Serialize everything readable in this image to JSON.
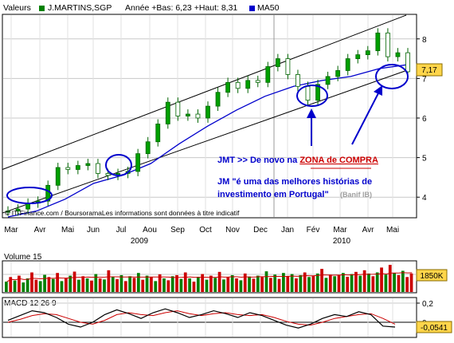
{
  "header": {
    "label": "Valeurs",
    "symbol": "J.MARTINS,SGP",
    "range_text": "Année +Bas: 6,23 +Haut: 8,31",
    "ma_label": "MA50"
  },
  "source_note": "© IT-Finance.com / BoursoramaLes informations sont données à titre indicatif",
  "annotations": {
    "line1_prefix": "JMT >> De novo na ",
    "line1_highlight": "ZONA de COMPRA",
    "line2": "JM \"é uma das melhores histórias de",
    "line3": "investimento em Portugal\"",
    "line3_source": "(Banif IB)"
  },
  "colors": {
    "price": "#008000",
    "ma": "#0000cc",
    "volume_up": "#008000",
    "volume_down": "#cc0000",
    "volume_avg": "#cc0000",
    "annotation_blue": "#0000cc",
    "annotation_red": "#cc0000",
    "last_price_badge": "#ffd54a"
  },
  "chart_data": [
    {
      "type": "candlestick",
      "title": "J.MARTINS,SGP",
      "x_tick_labels": [
        "Mar",
        "Avr",
        "Mai",
        "Jun",
        "Jul",
        "Aou",
        "Sep",
        "Oct",
        "Nov",
        "Dec",
        "Jan",
        "Fév",
        "Mar",
        "Avr",
        "Mai"
      ],
      "year_labels": [
        "2009",
        "2010"
      ],
      "y_ticks": [
        4,
        5,
        6,
        7,
        8
      ],
      "ylim": [
        3.5,
        8.6
      ],
      "last_value": "7,17",
      "grid": true,
      "series": [
        {
          "name": "J.MARTINS,SGP",
          "points": [
            [
              "Mar",
              3.65
            ],
            [
              "Mar",
              3.7
            ],
            [
              "Avr",
              3.85
            ],
            [
              "Avr",
              3.9
            ],
            [
              "Avr",
              4.3
            ],
            [
              "Mai",
              4.75
            ],
            [
              "Mai",
              4.7
            ],
            [
              "Mai",
              4.8
            ],
            [
              "Jun",
              4.85
            ],
            [
              "Jun",
              4.6
            ],
            [
              "Jun",
              4.55
            ],
            [
              "Jul",
              4.6
            ],
            [
              "Jul",
              4.65
            ],
            [
              "Jul",
              5.1
            ],
            [
              "Aou",
              5.4
            ],
            [
              "Aou",
              5.85
            ],
            [
              "Sep",
              6.4
            ],
            [
              "Sep",
              6.05
            ],
            [
              "Sep",
              6.1
            ],
            [
              "Oct",
              6.0
            ],
            [
              "Oct",
              6.3
            ],
            [
              "Oct",
              6.65
            ],
            [
              "Nov",
              6.9
            ],
            [
              "Nov",
              6.75
            ],
            [
              "Nov",
              6.95
            ],
            [
              "Dec",
              6.9
            ],
            [
              "Dec",
              7.3
            ],
            [
              "Jan",
              7.5
            ],
            [
              "Jan",
              7.1
            ],
            [
              "Jan",
              6.8
            ],
            [
              "Fév",
              6.45
            ],
            [
              "Fév",
              6.85
            ],
            [
              "Fév",
              7.05
            ],
            [
              "Mar",
              7.2
            ],
            [
              "Mar",
              7.5
            ],
            [
              "Mar",
              7.6
            ],
            [
              "Avr",
              7.7
            ],
            [
              "Avr",
              8.15
            ],
            [
              "Avr",
              7.55
            ],
            [
              "Mai",
              7.65
            ],
            [
              "Mai",
              7.17
            ]
          ]
        },
        {
          "name": "MA50",
          "points": [
            [
              "Mar",
              3.5
            ],
            [
              "Avr",
              3.65
            ],
            [
              "Mai",
              3.95
            ],
            [
              "Jun",
              4.35
            ],
            [
              "Jul",
              4.55
            ],
            [
              "Aou",
              4.85
            ],
            [
              "Sep",
              5.35
            ],
            [
              "Oct",
              5.8
            ],
            [
              "Nov",
              6.2
            ],
            [
              "Dec",
              6.55
            ],
            [
              "Jan",
              6.8
            ],
            [
              "Fév",
              6.95
            ],
            [
              "Mar",
              7.05
            ],
            [
              "Avr",
              7.25
            ],
            [
              "Mai",
              7.35
            ]
          ]
        }
      ],
      "trend_channel": {
        "upper": [
          [
            "Mar",
            4.7
          ],
          [
            "Mai",
            8.6
          ]
        ],
        "lower": [
          [
            "Mar",
            3.6
          ],
          [
            "Mai",
            7.2
          ]
        ]
      }
    },
    {
      "type": "bar",
      "title": "Volume 15",
      "last_value": "1850K",
      "bars": [
        [
          0.38,
          1
        ],
        [
          0.55,
          0
        ],
        [
          0.42,
          1
        ],
        [
          0.6,
          0
        ],
        [
          0.35,
          1
        ],
        [
          0.5,
          1
        ],
        [
          0.72,
          0
        ],
        [
          0.45,
          0
        ],
        [
          0.4,
          1
        ],
        [
          0.63,
          1
        ],
        [
          0.55,
          0
        ],
        [
          0.48,
          1
        ],
        [
          0.7,
          0
        ],
        [
          0.4,
          1
        ],
        [
          0.52,
          0
        ],
        [
          0.6,
          1
        ],
        [
          0.75,
          0
        ],
        [
          0.45,
          1
        ],
        [
          0.58,
          0
        ],
        [
          0.5,
          1
        ],
        [
          0.42,
          0
        ],
        [
          0.66,
          1
        ],
        [
          0.5,
          0
        ],
        [
          0.46,
          1
        ],
        [
          0.8,
          0
        ],
        [
          0.55,
          1
        ],
        [
          0.47,
          0
        ],
        [
          0.62,
          1
        ],
        [
          0.4,
          0
        ],
        [
          0.58,
          1
        ],
        [
          0.52,
          0
        ],
        [
          0.7,
          1
        ],
        [
          0.45,
          0
        ],
        [
          0.6,
          1
        ],
        [
          0.55,
          0
        ],
        [
          0.4,
          1
        ],
        [
          0.65,
          0
        ],
        [
          0.5,
          1
        ],
        [
          0.43,
          0
        ],
        [
          0.58,
          1
        ],
        [
          0.62,
          0
        ],
        [
          0.48,
          1
        ],
        [
          0.72,
          0
        ],
        [
          0.5,
          1
        ],
        [
          0.38,
          0
        ],
        [
          0.56,
          1
        ],
        [
          0.66,
          0
        ],
        [
          0.45,
          1
        ],
        [
          0.6,
          0
        ],
        [
          0.52,
          1
        ],
        [
          0.74,
          0
        ],
        [
          0.46,
          1
        ],
        [
          0.55,
          0
        ],
        [
          0.62,
          1
        ],
        [
          0.5,
          0
        ],
        [
          0.43,
          1
        ],
        [
          0.68,
          0
        ],
        [
          0.57,
          1
        ],
        [
          0.49,
          0
        ],
        [
          0.6,
          1
        ],
        [
          0.55,
          0
        ],
        [
          0.76,
          1
        ],
        [
          0.52,
          0
        ],
        [
          0.64,
          1
        ],
        [
          0.48,
          0
        ],
        [
          0.7,
          1
        ],
        [
          0.58,
          0
        ],
        [
          0.66,
          1
        ],
        [
          0.5,
          0
        ],
        [
          0.62,
          1
        ],
        [
          0.72,
          0
        ],
        [
          0.55,
          1
        ],
        [
          0.6,
          0
        ],
        [
          0.68,
          1
        ],
        [
          0.85,
          0
        ],
        [
          0.52,
          1
        ],
        [
          0.64,
          0
        ],
        [
          0.58,
          1
        ],
        [
          0.62,
          0
        ],
        [
          0.7,
          1
        ],
        [
          0.56,
          0
        ],
        [
          0.66,
          1
        ],
        [
          0.74,
          0
        ],
        [
          0.6,
          1
        ],
        [
          0.8,
          0
        ],
        [
          0.68,
          1
        ],
        [
          0.58,
          0
        ],
        [
          0.72,
          1
        ],
        [
          0.9,
          0
        ],
        [
          0.64,
          1
        ],
        [
          1.0,
          0
        ],
        [
          0.7,
          1
        ],
        [
          0.62,
          0
        ],
        [
          0.78,
          1
        ],
        [
          0.55,
          0
        ],
        [
          0.68,
          0
        ]
      ]
    },
    {
      "type": "line",
      "title": "MACD 12 26 9",
      "y_ticks": [
        0.2,
        0
      ],
      "y_tick_labels": [
        "0,2",
        "0"
      ],
      "ylim": [
        -0.15,
        0.25
      ],
      "last_value": "-0,0541",
      "series": [
        {
          "name": "MACD",
          "values": [
            0.02,
            0.07,
            0.12,
            0.1,
            0.05,
            -0.02,
            -0.05,
            0.0,
            0.08,
            0.13,
            0.09,
            0.04,
            0.1,
            0.14,
            0.1,
            0.05,
            0.08,
            0.12,
            0.09,
            0.05,
            0.1,
            0.07,
            0.02,
            -0.03,
            -0.06,
            -0.02,
            0.04,
            0.08,
            0.06,
            0.11,
            0.08,
            -0.04,
            -0.05
          ]
        },
        {
          "name": "Signal",
          "values": [
            0.0,
            0.03,
            0.07,
            0.09,
            0.08,
            0.04,
            0.0,
            -0.02,
            0.02,
            0.08,
            0.1,
            0.08,
            0.07,
            0.1,
            0.12,
            0.09,
            0.07,
            0.09,
            0.1,
            0.08,
            0.07,
            0.08,
            0.05,
            0.01,
            -0.02,
            -0.03,
            0.0,
            0.04,
            0.06,
            0.08,
            0.09,
            0.04,
            -0.02
          ]
        }
      ]
    }
  ]
}
